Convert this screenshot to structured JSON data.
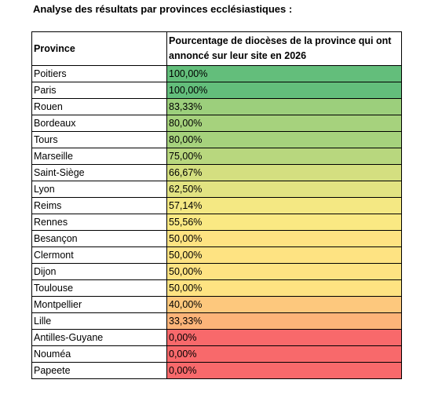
{
  "title": "Analyse des résultats par provinces ecclésiastiques :",
  "table": {
    "headers": {
      "province": "Province",
      "percentage": "Pourcentage de diocèses de la province qui ont annoncé sur leur site en 2026"
    },
    "rows": [
      {
        "province": "Poitiers",
        "percentage": "100,00%",
        "color": "#63be7b"
      },
      {
        "province": "Paris",
        "percentage": "100,00%",
        "color": "#63be7b"
      },
      {
        "province": "Rouen",
        "percentage": "83,33%",
        "color": "#9ccf7c"
      },
      {
        "province": "Bordeaux",
        "percentage": "80,00%",
        "color": "#a6d27d"
      },
      {
        "province": "Tours",
        "percentage": "80,00%",
        "color": "#a6d27d"
      },
      {
        "province": "Marseille",
        "percentage": "75,00%",
        "color": "#b8d77e"
      },
      {
        "province": "Saint-Siège",
        "percentage": "66,67%",
        "color": "#d4df80"
      },
      {
        "province": "Lyon",
        "percentage": "62,50%",
        "color": "#e2e382"
      },
      {
        "province": "Reims",
        "percentage": "57,14%",
        "color": "#f4e883"
      },
      {
        "province": "Rennes",
        "percentage": "55,56%",
        "color": "#fae983"
      },
      {
        "province": "Besançon",
        "percentage": "50,00%",
        "color": "#fee382"
      },
      {
        "province": "Clermont",
        "percentage": "50,00%",
        "color": "#fee382"
      },
      {
        "province": "Dijon",
        "percentage": "50,00%",
        "color": "#fee382"
      },
      {
        "province": "Toulouse",
        "percentage": "50,00%",
        "color": "#fee382"
      },
      {
        "province": "Montpellier",
        "percentage": "40,00%",
        "color": "#fdc87d"
      },
      {
        "province": "Lille",
        "percentage": "33,33%",
        "color": "#fcb479"
      },
      {
        "province": "Antilles-Guyane",
        "percentage": "0,00%",
        "color": "#f8696b"
      },
      {
        "province": "Nouméa",
        "percentage": "0,00%",
        "color": "#f8696b"
      },
      {
        "province": "Papeete",
        "percentage": "0,00%",
        "color": "#f8696b"
      }
    ]
  }
}
